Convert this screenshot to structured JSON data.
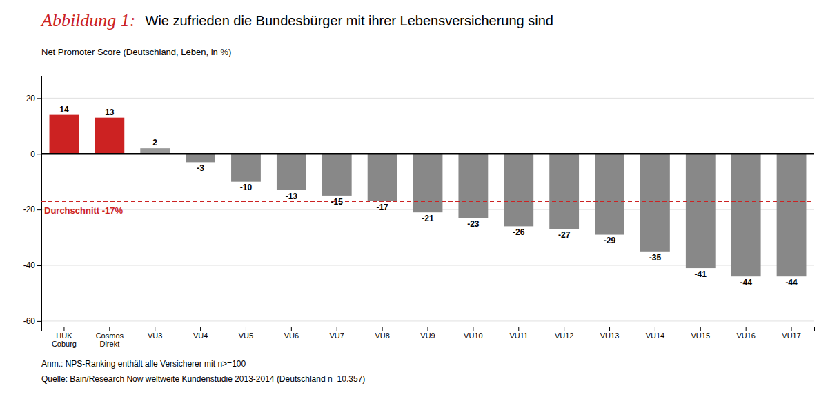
{
  "chart_data": {
    "type": "bar",
    "figure_label": "Abbildung 1:",
    "title": "Wie zufrieden die Bundesbürger mit ihrer Lebensversicherung sind",
    "subtitle": "Net Promoter Score (Deutschland, Leben, in %)",
    "categories": [
      "HUK\nCoburg",
      "Cosmos\nDirekt",
      "VU3",
      "VU4",
      "VU5",
      "VU6",
      "VU7",
      "VU8",
      "VU9",
      "VU10",
      "VU11",
      "VU12",
      "VU13",
      "VU14",
      "VU15",
      "VU16",
      "VU17"
    ],
    "values": [
      14,
      13,
      2,
      -3,
      -10,
      -13,
      -15,
      -17,
      -21,
      -23,
      -26,
      -27,
      -29,
      -35,
      -41,
      -44,
      -44
    ],
    "colors": [
      "#cc2222",
      "#cc2222",
      "#999999",
      "#888888",
      "#888888",
      "#888888",
      "#888888",
      "#888888",
      "#888888",
      "#888888",
      "#888888",
      "#888888",
      "#888888",
      "#888888",
      "#888888",
      "#888888",
      "#888888"
    ],
    "data_labels": true,
    "reference_line": {
      "value": -17,
      "label": "Durchschnitt -17%",
      "color": "#cc2222"
    },
    "ylim": [
      -62,
      28
    ],
    "yticks": [
      -60,
      -40,
      -20,
      0,
      20
    ],
    "grid": true,
    "notes": [
      "Anm.: NPS-Ranking enthält alle Versicherer mit n>=100",
      "Quelle: Bain/Research Now weltweite Kundenstudie 2013-2014 (Deutschland n=10.357)"
    ]
  }
}
